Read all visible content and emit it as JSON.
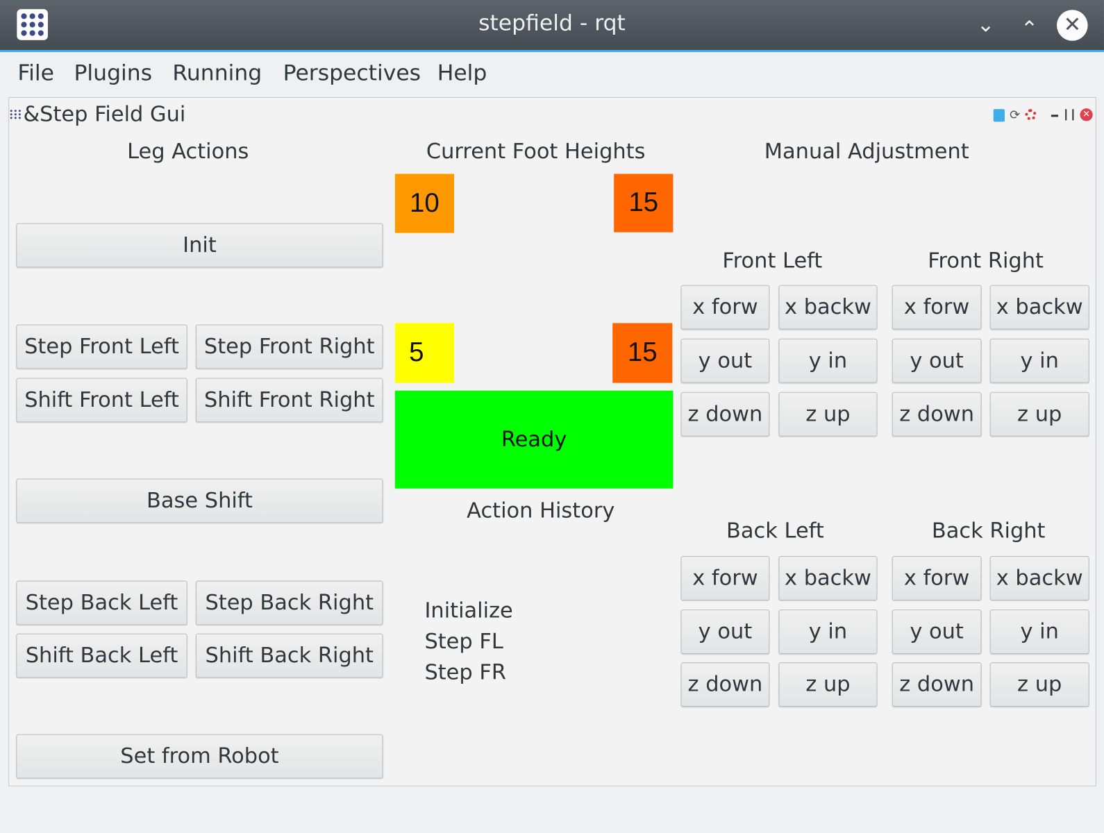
{
  "window": {
    "title": "stepfield - rqt"
  },
  "menu": [
    "File",
    "Plugins",
    "Running",
    "Perspectives",
    "Help"
  ],
  "plugin": {
    "title": "&Step Field Gui"
  },
  "leg_actions": {
    "header": "Leg Actions",
    "init": "Init",
    "step_front_left": "Step Front Left",
    "step_front_right": "Step Front Right",
    "shift_front_left": "Shift Front Left",
    "shift_front_right": "Shift Front Right",
    "base_shift": "Base Shift",
    "step_back_left": "Step Back Left",
    "step_back_right": "Step Back Right",
    "shift_back_left": "Shift Back Left",
    "shift_back_right": "Shift Back Right",
    "set_from_robot": "Set from Robot"
  },
  "foot_heights": {
    "header": "Current Foot Heights",
    "front_left": {
      "value": "10",
      "color": "#ff9900"
    },
    "front_right": {
      "value": "15",
      "color": "#ff6600"
    },
    "back_left": {
      "value": "5",
      "color": "#ffff00"
    },
    "back_right": {
      "value": "15",
      "color": "#ff6600"
    }
  },
  "status": {
    "text": "Ready",
    "color": "#00ff00"
  },
  "history": {
    "header": "Action History",
    "items": [
      "Initialize",
      "Step FL",
      "Step FR"
    ]
  },
  "manual": {
    "header": "Manual Adjustment",
    "legs": [
      {
        "label": "Front Left"
      },
      {
        "label": "Front Right"
      },
      {
        "label": "Back Left"
      },
      {
        "label": "Back Right"
      }
    ],
    "buttons": [
      "x forw",
      "x backw",
      "y out",
      "y in",
      "z down",
      "z up"
    ]
  }
}
